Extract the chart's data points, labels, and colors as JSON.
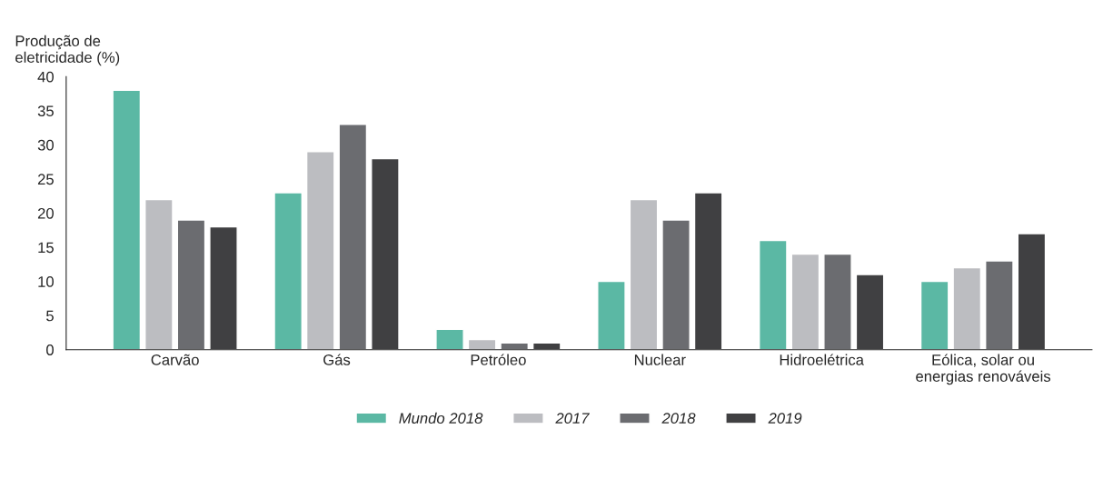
{
  "chart_data": {
    "type": "bar",
    "ylabel": "Produção de\neletricidade (%)",
    "categories": [
      "Carvão",
      "Gás",
      "Petróleo",
      "Nuclear",
      "Hidroelétrica",
      "Eólica, solar ou\nenergias renováveis"
    ],
    "series": [
      {
        "name": "Mundo 2018",
        "color": "#5bb8a4",
        "values": [
          38,
          23,
          3,
          10,
          16,
          10
        ]
      },
      {
        "name": "2017",
        "color": "#bcbdc1",
        "values": [
          22,
          29,
          1.5,
          22,
          14,
          12
        ]
      },
      {
        "name": "2018",
        "color": "#6b6c70",
        "values": [
          19,
          33,
          1,
          19,
          14,
          13
        ]
      },
      {
        "name": "2019",
        "color": "#404042",
        "values": [
          18,
          28,
          1,
          23,
          11,
          17
        ]
      }
    ],
    "ylim": [
      0,
      40
    ],
    "yticks": [
      0,
      5,
      10,
      15,
      20,
      25,
      30,
      35,
      40
    ],
    "grid": false,
    "legend": "bottom"
  }
}
